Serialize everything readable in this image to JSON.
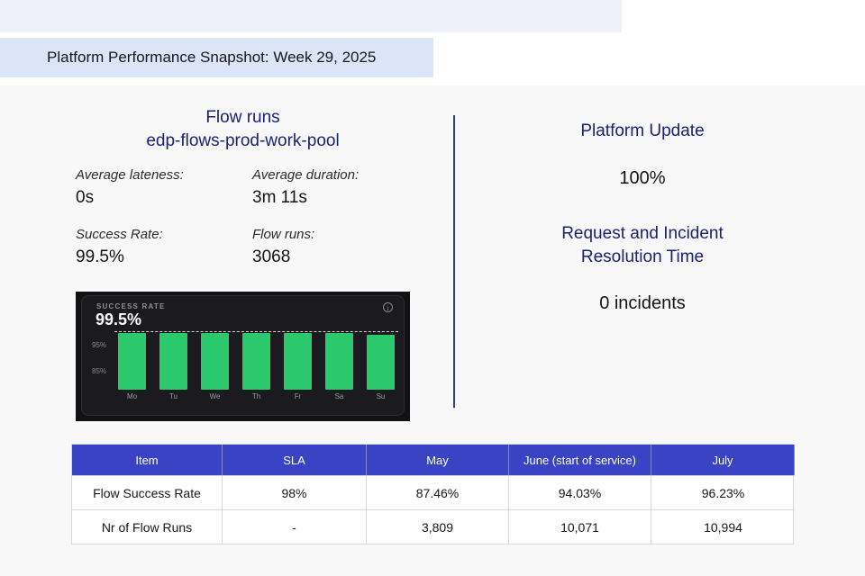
{
  "page": {
    "title": "Platform Performance Snapshot: Week 29, 2025"
  },
  "flow_runs_panel": {
    "heading_line1": "Flow runs",
    "heading_line2": "edp-flows-prod-work-pool",
    "metrics": [
      {
        "label": "Average lateness:",
        "value": "0s"
      },
      {
        "label": "Average duration:",
        "value": "3m 11s"
      },
      {
        "label": "Success Rate:",
        "value": "99.5%"
      },
      {
        "label": "Flow runs:",
        "value": "3068"
      }
    ]
  },
  "chart_widget": {
    "label": "SUCCESS RATE",
    "big_number": "99.5%"
  },
  "chart_data": {
    "type": "bar",
    "title": "SUCCESS RATE",
    "big_number": "99.5%",
    "categories": [
      "Mo",
      "Tu",
      "We",
      "Th",
      "Fr",
      "Sa",
      "Su"
    ],
    "values": [
      99.5,
      99.5,
      99.5,
      99.5,
      99.5,
      99.5,
      98.8
    ],
    "yticks": [
      {
        "label": "95%",
        "value": 95
      },
      {
        "label": "85%",
        "value": 85
      }
    ],
    "target_line": 100,
    "ylim": [
      78,
      101
    ],
    "bar_color": "#2bc96c",
    "grid": "off",
    "legend": "none"
  },
  "platform_panel": {
    "heading1": "Platform Update",
    "value1": "100%",
    "heading2_line1": "Request and Incident",
    "heading2_line2": "Resolution Time",
    "value2": "0 incidents"
  },
  "table": {
    "headers": [
      "Item",
      "SLA",
      "May",
      "June (start of service)",
      "July"
    ],
    "rows": [
      {
        "cells": [
          "Flow Success Rate",
          "98%",
          "87.46%",
          "94.03%",
          "96.23%"
        ]
      },
      {
        "cells": [
          "Nr of Flow Runs",
          "-",
          "3,809",
          "10,071",
          "10,994"
        ]
      }
    ]
  },
  "colors": {
    "accent_blue": "#3a43c3",
    "navy_heading": "#1b2173",
    "title_band": "#dce5f8",
    "top_strip": "#edeff9",
    "bar_green": "#2bc96c",
    "widget_bg": "#121215",
    "divider": "#2c3a94"
  }
}
